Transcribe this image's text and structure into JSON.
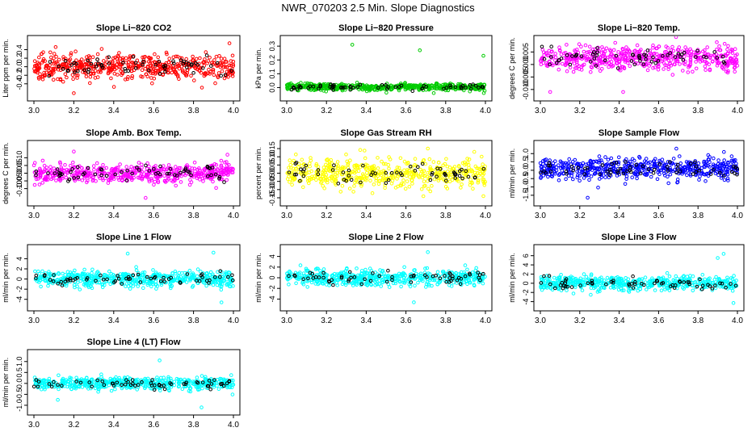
{
  "title": "NWR_070203  2.5 Min. Slope Diagnostics",
  "colors": {
    "highlight": "#000000",
    "axis": "#000000"
  },
  "chart_data": [
    {
      "type": "scatter",
      "title": "Slope Li−820 CO2",
      "ylabel": "Liter ppm per min.",
      "color": "#ff0000",
      "xlim": [
        3.0,
        4.0
      ],
      "ylim": [
        -0.65,
        0.58
      ],
      "xticks": [
        "3.0",
        "3.2",
        "3.4",
        "3.6",
        "3.8",
        "4.0"
      ],
      "yticks": [
        {
          "v": -0.4,
          "label": "-0.4"
        },
        {
          "v": -0.2,
          "label": "-0.2"
        },
        {
          "v": 0.0,
          "label": "0.0"
        },
        {
          "v": 0.2,
          "label": "0.2"
        },
        {
          "v": 0.4,
          "label": "0.4"
        }
      ],
      "n": 520,
      "center": 0.0,
      "spread": 0.2,
      "outliers": [
        [
          3.98,
          0.55
        ],
        [
          3.2,
          -0.62
        ]
      ]
    },
    {
      "type": "scatter",
      "title": "Slope Li−820 Pressure",
      "ylabel": "kPa per min.",
      "color": "#00cc00",
      "xlim": [
        3.0,
        4.0
      ],
      "ylim": [
        -0.05,
        0.33
      ],
      "xticks": [
        "3.0",
        "3.2",
        "3.4",
        "3.6",
        "3.8",
        "4.0"
      ],
      "yticks": [
        {
          "v": 0.0,
          "label": "0.0"
        },
        {
          "v": 0.1,
          "label": "0.1"
        },
        {
          "v": 0.2,
          "label": "0.2"
        },
        {
          "v": 0.3,
          "label": "0.3"
        }
      ],
      "n": 520,
      "center": 0.005,
      "spread": 0.018,
      "outliers": [
        [
          3.33,
          0.31
        ],
        [
          3.67,
          0.27
        ],
        [
          3.99,
          0.23
        ],
        [
          3.74,
          -0.04
        ]
      ]
    },
    {
      "type": "scatter",
      "title": "Slope Li−820 Temp.",
      "ylabel": "degrees C per min.",
      "color": "#ff00ff",
      "xlim": [
        3.0,
        4.0
      ],
      "ylim": [
        -0.012,
        0.009
      ],
      "xticks": [
        "3.0",
        "3.2",
        "3.4",
        "3.6",
        "3.8",
        "4.0"
      ],
      "yticks": [
        {
          "v": -0.01,
          "label": "-0.010"
        },
        {
          "v": -0.005,
          "label": "-0.005"
        },
        {
          "v": 0.0,
          "label": "0.000"
        },
        {
          "v": 0.005,
          "label": "0.005"
        }
      ],
      "n": 520,
      "center": 0.0025,
      "spread": 0.0035,
      "outliers": [
        [
          3.05,
          -0.011
        ],
        [
          3.42,
          -0.011
        ],
        [
          3.97,
          0.006
        ]
      ]
    },
    {
      "type": "scatter",
      "title": "Slope Amb. Box Temp.",
      "ylabel": "degrees C per min.",
      "color": "#ff00ff",
      "xlim": [
        3.0,
        4.0
      ],
      "ylim": [
        -0.17,
        0.17
      ],
      "xticks": [
        "3.0",
        "3.2",
        "3.4",
        "3.6",
        "3.8",
        "4.0"
      ],
      "yticks": [
        {
          "v": -0.1,
          "label": "-0.10"
        },
        {
          "v": -0.05,
          "label": "-0.05"
        },
        {
          "v": 0.0,
          "label": "0.00"
        },
        {
          "v": 0.05,
          "label": "0.05"
        },
        {
          "v": 0.1,
          "label": "0.10"
        }
      ],
      "n": 520,
      "center": 0.0,
      "spread": 0.045,
      "outliers": [
        [
          3.2,
          0.14
        ],
        [
          3.56,
          -0.16
        ],
        [
          3.97,
          0.12
        ]
      ]
    },
    {
      "type": "scatter",
      "title": "Slope Gas Stream RH",
      "ylabel": "percent per min.",
      "color": "#ffff00",
      "xlim": [
        3.0,
        4.0
      ],
      "ylim": [
        -0.16,
        0.16
      ],
      "xticks": [
        "3.0",
        "3.2",
        "3.4",
        "3.6",
        "3.8",
        "4.0"
      ],
      "yticks": [
        {
          "v": -0.15,
          "label": "-0.15"
        },
        {
          "v": -0.1,
          "label": "-0.10"
        },
        {
          "v": -0.05,
          "label": "-0.05"
        },
        {
          "v": 0.0,
          "label": "0.00"
        },
        {
          "v": 0.05,
          "label": "0.05"
        },
        {
          "v": 0.1,
          "label": "0.10"
        },
        {
          "v": 0.15,
          "label": "0.15"
        }
      ],
      "n": 520,
      "center": 0.0,
      "spread": 0.06,
      "outliers": [
        [
          3.71,
          0.15
        ],
        [
          3.99,
          -0.14
        ]
      ]
    },
    {
      "type": "scatter",
      "title": "Slope Sample Flow",
      "ylabel": "ml/min per min.",
      "color": "#0000ff",
      "xlim": [
        3.0,
        4.0
      ],
      "ylim": [
        -1.75,
        1.4
      ],
      "xticks": [
        "3.0",
        "3.2",
        "3.4",
        "3.6",
        "3.8",
        "4.0"
      ],
      "yticks": [
        {
          "v": -1.5,
          "label": "-1.5"
        },
        {
          "v": -1.0,
          "label": "-1.0"
        },
        {
          "v": -0.5,
          "label": "-0.5"
        },
        {
          "v": 0.0,
          "label": "0.0"
        },
        {
          "v": 0.5,
          "label": "0.5"
        },
        {
          "v": 1.0,
          "label": "1.0"
        }
      ],
      "n": 520,
      "center": 0.1,
      "spread": 0.45,
      "outliers": [
        [
          3.24,
          -1.65
        ],
        [
          3.69,
          1.3
        ]
      ]
    },
    {
      "type": "scatter",
      "title": "Slope Line 1 Flow",
      "ylabel": "ml/min per min.",
      "color": "#00ffff",
      "xlim": [
        3.0,
        4.0
      ],
      "ylim": [
        -5,
        5.5
      ],
      "xticks": [
        "3.0",
        "3.2",
        "3.4",
        "3.6",
        "3.8",
        "4.0"
      ],
      "yticks": [
        {
          "v": -4,
          "label": "-4"
        },
        {
          "v": -2,
          "label": "-2"
        },
        {
          "v": 0,
          "label": "0"
        },
        {
          "v": 2,
          "label": "2"
        },
        {
          "v": 4,
          "label": "4"
        }
      ],
      "n": 520,
      "center": 0.0,
      "spread": 1.1,
      "outliers": [
        [
          3.9,
          5.2
        ],
        [
          3.47,
          5.0
        ],
        [
          3.94,
          -4.6
        ]
      ]
    },
    {
      "type": "scatter",
      "title": "Slope Line 2 Flow",
      "ylabel": "ml/min per min.",
      "color": "#00ffff",
      "xlim": [
        3.0,
        4.0
      ],
      "ylim": [
        -5,
        5
      ],
      "xticks": [
        "3.0",
        "3.2",
        "3.4",
        "3.6",
        "3.8",
        "4.0"
      ],
      "yticks": [
        {
          "v": -4,
          "label": "-4"
        },
        {
          "v": -2,
          "label": "-2"
        },
        {
          "v": 0,
          "label": "0"
        },
        {
          "v": 2,
          "label": "2"
        },
        {
          "v": 4,
          "label": "4"
        }
      ],
      "n": 520,
      "center": 0.0,
      "spread": 1.1,
      "outliers": [
        [
          3.71,
          4.8
        ],
        [
          3.64,
          -4.6
        ]
      ]
    },
    {
      "type": "scatter",
      "title": "Slope Line 3 Flow",
      "ylabel": "ml/min per min.",
      "color": "#00ffff",
      "xlim": [
        3.0,
        4.0
      ],
      "ylim": [
        -4.6,
        7
      ],
      "xticks": [
        "3.0",
        "3.2",
        "3.4",
        "3.6",
        "3.8",
        "4.0"
      ],
      "yticks": [
        {
          "v": -4,
          "label": "-4"
        },
        {
          "v": -2,
          "label": "-2"
        },
        {
          "v": 0,
          "label": "0"
        },
        {
          "v": 2,
          "label": "2"
        },
        {
          "v": 4,
          "label": "4"
        },
        {
          "v": 6,
          "label": "6"
        }
      ],
      "n": 520,
      "center": 0.0,
      "spread": 1.1,
      "outliers": [
        [
          3.93,
          6.4
        ],
        [
          3.98,
          -4.3
        ],
        [
          3.9,
          5.5
        ]
      ]
    },
    {
      "type": "scatter",
      "title": "Slope Line 4 (LT) Flow",
      "ylabel": "ml/min per min.",
      "color": "#00ffff",
      "xlim": [
        3.0,
        4.0
      ],
      "ylim": [
        -1.15,
        1.25
      ],
      "xticks": [
        "3.0",
        "3.2",
        "3.4",
        "3.6",
        "3.8",
        "4.0"
      ],
      "yticks": [
        {
          "v": -1.0,
          "label": "-1.0"
        },
        {
          "v": -0.5,
          "label": "-0.5"
        },
        {
          "v": 0.0,
          "label": "0.0"
        },
        {
          "v": 0.5,
          "label": "0.5"
        },
        {
          "v": 1.0,
          "label": "1.0"
        }
      ],
      "n": 520,
      "center": 0.0,
      "spread": 0.2,
      "outliers": [
        [
          3.84,
          -1.1
        ],
        [
          3.63,
          1.05
        ],
        [
          3.12,
          -0.75
        ]
      ]
    }
  ]
}
